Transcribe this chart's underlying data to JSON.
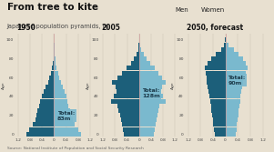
{
  "title": "From tree to kite",
  "subtitle": "Japanese population pyramids, m",
  "source": "Source: National Institute of Population and Social Security Research",
  "years": [
    "1950",
    "2005",
    "2050, forecast"
  ],
  "totals": [
    "Total:\n83m",
    "Total:\n128m",
    "Total:\n90m"
  ],
  "legend_men": "Men",
  "legend_women": "Women",
  "color_men": "#1c5f7a",
  "color_women": "#7ab9ce",
  "background_color": "#e8e0d0",
  "grid_color": "#c8bfb0",
  "tick_color": "#444444",
  "label_fontsize": 5.0,
  "title_fontsize": 7.5,
  "subtitle_fontsize": 4.8,
  "annotation_fontsize": 4.5,
  "total_box_color": "#7ab9ce",
  "total_text_color": "#1c3a4a",
  "age_groups": [
    0,
    5,
    10,
    15,
    20,
    25,
    30,
    35,
    40,
    45,
    50,
    55,
    60,
    65,
    70,
    75,
    80,
    85,
    90,
    95,
    100
  ],
  "data_1950_men": [
    0.92,
    0.82,
    0.7,
    0.63,
    0.58,
    0.55,
    0.5,
    0.46,
    0.42,
    0.35,
    0.28,
    0.21,
    0.16,
    0.11,
    0.07,
    0.04,
    0.025,
    0.012,
    0.005,
    0.002,
    0.001
  ],
  "data_1950_women": [
    0.9,
    0.8,
    0.68,
    0.61,
    0.56,
    0.53,
    0.48,
    0.44,
    0.41,
    0.34,
    0.28,
    0.23,
    0.18,
    0.13,
    0.09,
    0.06,
    0.038,
    0.018,
    0.008,
    0.003,
    0.001
  ],
  "data_2005_men": [
    0.52,
    0.54,
    0.57,
    0.6,
    0.63,
    0.68,
    0.71,
    0.93,
    0.83,
    0.76,
    0.79,
    0.9,
    0.73,
    0.58,
    0.43,
    0.28,
    0.16,
    0.08,
    0.03,
    0.008,
    0.002
  ],
  "data_2005_women": [
    0.5,
    0.51,
    0.54,
    0.57,
    0.6,
    0.65,
    0.68,
    0.89,
    0.8,
    0.74,
    0.78,
    0.89,
    0.75,
    0.63,
    0.51,
    0.37,
    0.26,
    0.16,
    0.08,
    0.025,
    0.006
  ],
  "data_2050_men": [
    0.35,
    0.37,
    0.39,
    0.41,
    0.43,
    0.45,
    0.47,
    0.49,
    0.51,
    0.54,
    0.57,
    0.59,
    0.61,
    0.64,
    0.67,
    0.58,
    0.46,
    0.3,
    0.14,
    0.045,
    0.008
  ],
  "data_2050_women": [
    0.33,
    0.35,
    0.37,
    0.39,
    0.41,
    0.43,
    0.45,
    0.47,
    0.49,
    0.52,
    0.55,
    0.58,
    0.61,
    0.66,
    0.71,
    0.65,
    0.56,
    0.43,
    0.27,
    0.11,
    0.025
  ],
  "xlim": 1.3
}
